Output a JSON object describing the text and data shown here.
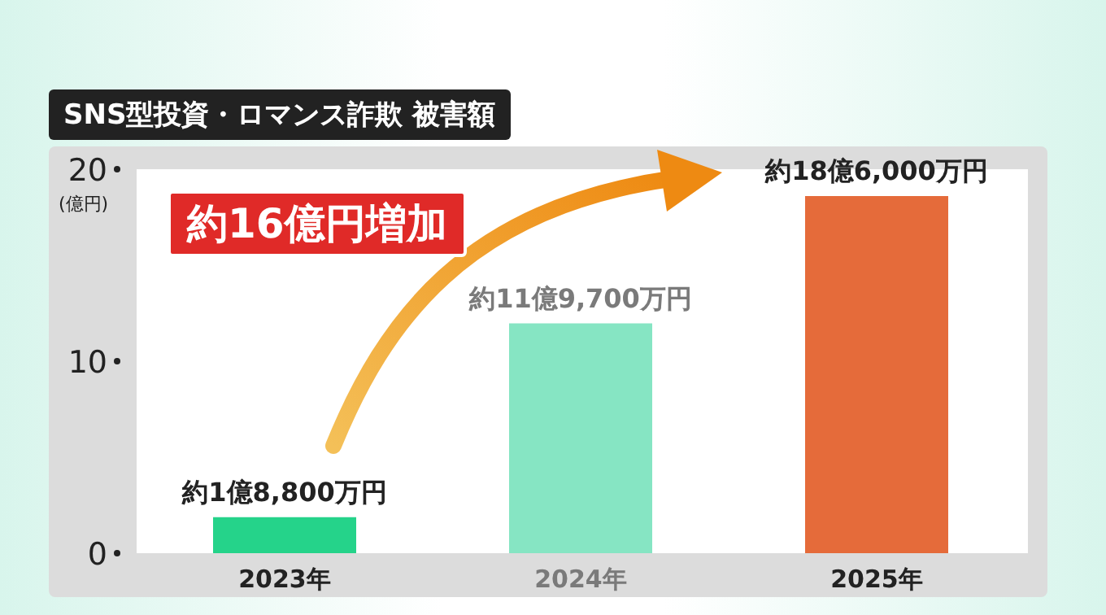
{
  "chart_data": {
    "type": "bar",
    "title": "SNS型投資・ロマンス詐欺 被害額",
    "ylabel": "(億円)",
    "categories": [
      "2023年",
      "2024年",
      "2025年"
    ],
    "values": [
      1.88,
      11.97,
      18.6
    ],
    "colors": [
      "#25d38a",
      "#86e5c3",
      "#e56b3a"
    ],
    "value_labels": [
      "約1億8,800万円",
      "約11億9,700万円",
      "約18億6,000万円"
    ],
    "ylim": [
      0,
      20
    ],
    "yticks": [
      0,
      10,
      20
    ],
    "annotations": [
      "約16億円増加"
    ],
    "grid": false,
    "legend": false
  }
}
